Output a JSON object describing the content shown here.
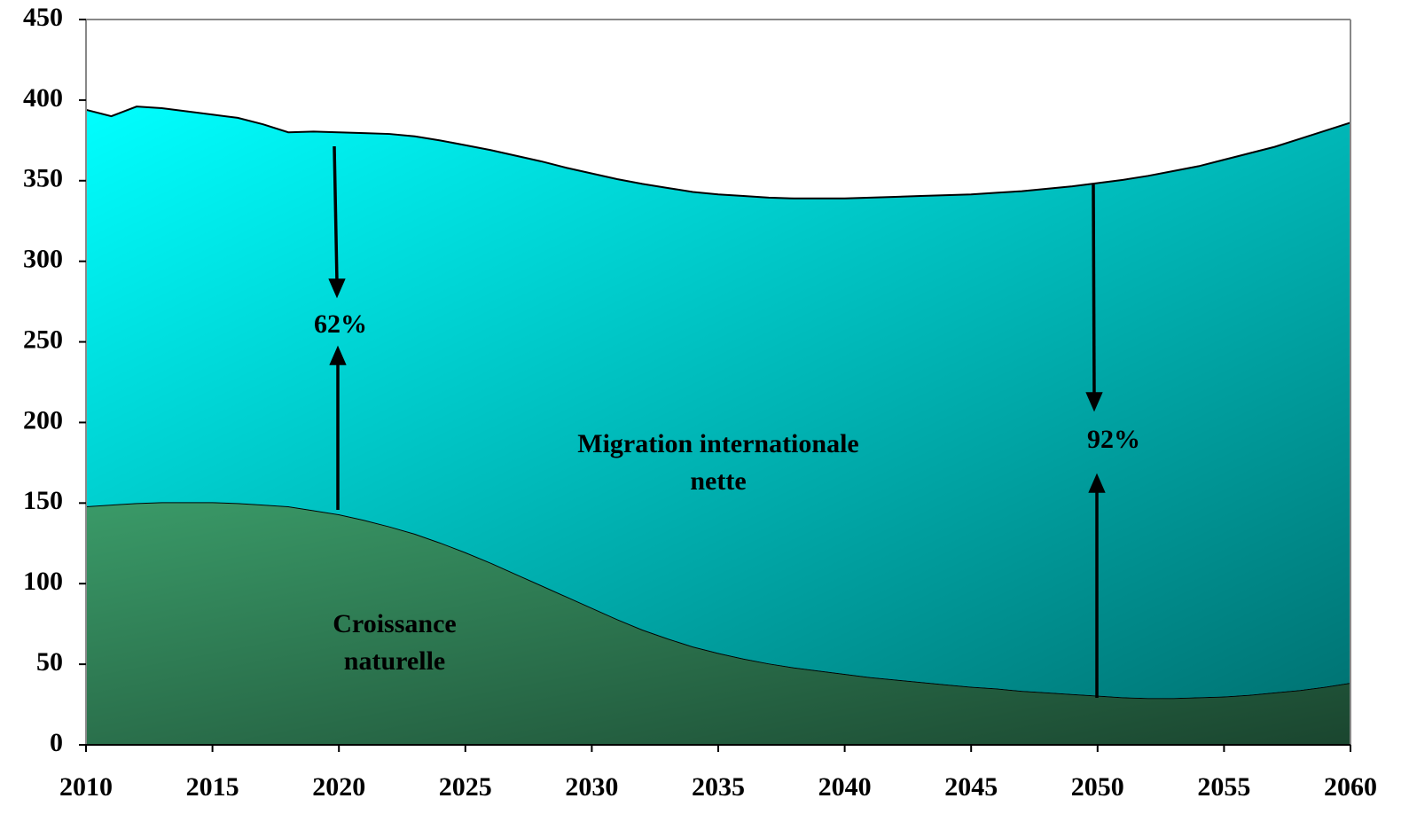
{
  "chart_data": {
    "type": "stacked_area",
    "x": [
      2010,
      2011,
      2012,
      2013,
      2014,
      2015,
      2016,
      2017,
      2018,
      2019,
      2020,
      2021,
      2022,
      2023,
      2024,
      2025,
      2026,
      2027,
      2028,
      2029,
      2030,
      2031,
      2032,
      2033,
      2034,
      2035,
      2036,
      2037,
      2038,
      2039,
      2040,
      2041,
      2042,
      2043,
      2044,
      2045,
      2046,
      2047,
      2048,
      2049,
      2050,
      2051,
      2052,
      2053,
      2054,
      2055,
      2056,
      2057,
      2058,
      2059,
      2060
    ],
    "series": [
      {
        "name": "Croissance naturelle",
        "color": "#3a9a68",
        "values": [
          148,
          149,
          150,
          150.5,
          150.5,
          150.5,
          150,
          149,
          148,
          145.5,
          143,
          139.5,
          135.5,
          131,
          125.5,
          119.5,
          113,
          106,
          99,
          92,
          85,
          78,
          71.5,
          66,
          61,
          57,
          53.5,
          50.5,
          48,
          46,
          44,
          42,
          40.5,
          39,
          37.5,
          36,
          35,
          33.5,
          32.5,
          31.5,
          30.5,
          29.5,
          29,
          29,
          29.5,
          30,
          31,
          32.5,
          34,
          36,
          38.5
        ]
      },
      {
        "name": "Migration internationale nette",
        "color": "#00ffff",
        "values": [
          246,
          241,
          246,
          244.5,
          242.5,
          240.5,
          239,
          236,
          232,
          235,
          237,
          240,
          243.5,
          246.5,
          249.5,
          252.5,
          256,
          259.5,
          263,
          266,
          269.5,
          273,
          276.5,
          279.5,
          282,
          284.5,
          287,
          289,
          291,
          293,
          295,
          297.5,
          299.5,
          301.5,
          303.5,
          305.5,
          307.5,
          310,
          312.5,
          315,
          318,
          321,
          324,
          327,
          329.5,
          333,
          336,
          338.5,
          342,
          345,
          347.5
        ]
      }
    ],
    "annotations": [
      "62%",
      "92%"
    ],
    "xlim": [
      2010,
      2060
    ],
    "xticks": [
      2010,
      2015,
      2020,
      2025,
      2030,
      2035,
      2040,
      2045,
      2050,
      2055,
      2060
    ],
    "ylim": [
      0,
      450
    ],
    "yticks": [
      0,
      50,
      100,
      150,
      200,
      250,
      300,
      350,
      400,
      450
    ]
  }
}
